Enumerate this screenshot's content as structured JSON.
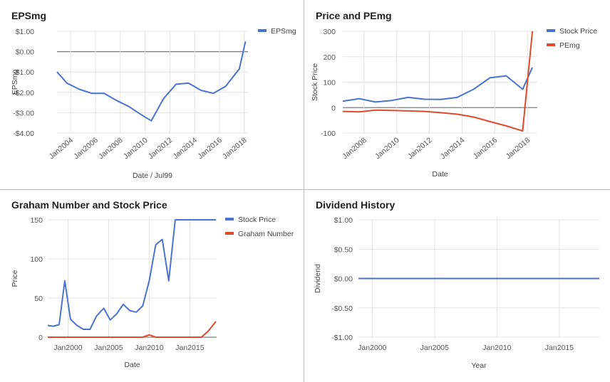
{
  "colors": {
    "blue": "#4a73cf",
    "red": "#e0492b",
    "grid": "#e3e3e3",
    "zero": "#7a7a7a",
    "text": "#555555"
  },
  "chart_data": [
    {
      "type": "line",
      "title": "EPSmg",
      "xlabel": "Date / Jul99",
      "ylabel": "EPSmg",
      "ylim": [
        -4,
        1
      ],
      "yticks": [
        1,
        0,
        -1,
        -2,
        -3,
        -4
      ],
      "ytick_labels": [
        "$1.00",
        "$0.00",
        "-$1.00",
        "-$2.00",
        "-$3.00",
        "-$4.00"
      ],
      "xticks": [
        2004,
        2006,
        2008,
        2010,
        2012,
        2014,
        2016,
        2018
      ],
      "xtick_labels": [
        "Jan2004",
        "Jan2006",
        "Jan2008",
        "Jan2010",
        "Jan2012",
        "Jan2014",
        "Jan2016",
        "Jan2018"
      ],
      "xlim": [
        2002.9,
        2018.3
      ],
      "legend": "right",
      "series": [
        {
          "name": "EPSmg",
          "color": "#4a73cf",
          "x": [
            2002.9,
            2003.2,
            2003.7,
            2004.7,
            2005.7,
            2006.7,
            2007.7,
            2008.7,
            2009.7,
            2010.5,
            2011.5,
            2012.5,
            2013.5,
            2014.5,
            2015.5,
            2016.5,
            2017.6,
            2018.1
          ],
          "y": [
            -1.0,
            -1.2,
            -1.55,
            -1.85,
            -2.05,
            -2.05,
            -2.4,
            -2.7,
            -3.1,
            -3.4,
            -2.3,
            -1.6,
            -1.55,
            -1.9,
            -2.05,
            -1.7,
            -0.85,
            0.5
          ]
        }
      ]
    },
    {
      "type": "line",
      "title": "Price and PEmg",
      "xlabel": "Date",
      "ylabel": "Stock Price",
      "ylim": [
        -100,
        300
      ],
      "yticks": [
        300,
        200,
        100,
        0,
        -100
      ],
      "ytick_labels": [
        "300",
        "200",
        "100",
        "0",
        "-100"
      ],
      "xticks": [
        2008,
        2010,
        2012,
        2014,
        2016,
        2018
      ],
      "xtick_labels": [
        "Jan2008",
        "Jan2010",
        "Jan2012",
        "Jan2014",
        "Jan2016",
        "Jan2018"
      ],
      "xlim": [
        2006.7,
        2018.6
      ],
      "legend": "right",
      "series": [
        {
          "name": "Stock Price",
          "color": "#4a73cf",
          "x": [
            2006.7,
            2007.7,
            2008.7,
            2009.7,
            2010.7,
            2011.7,
            2012.7,
            2013.7,
            2014.7,
            2015.7,
            2016.7,
            2017.7,
            2018.3
          ],
          "y": [
            25,
            35,
            22,
            28,
            40,
            33,
            32,
            40,
            72,
            117,
            125,
            72,
            158
          ]
        },
        {
          "name": "PEmg",
          "color": "#e0492b",
          "x": [
            2006.7,
            2007.7,
            2008.7,
            2009.7,
            2010.7,
            2011.7,
            2012.7,
            2013.7,
            2014.7,
            2015.7,
            2016.7,
            2017.7,
            2018.3
          ],
          "y": [
            -15,
            -17,
            -10,
            -11,
            -13,
            -15,
            -20,
            -26,
            -37,
            -55,
            -72,
            -92,
            300
          ]
        }
      ]
    },
    {
      "type": "line",
      "title": "Graham Number and Stock Price",
      "xlabel": "Date",
      "ylabel": "Price",
      "ylim": [
        0,
        150
      ],
      "yticks": [
        150,
        100,
        50,
        0
      ],
      "ytick_labels": [
        "150",
        "100",
        "50",
        "0"
      ],
      "xticks": [
        2000,
        2005,
        2010,
        2015
      ],
      "xtick_labels": [
        "Jan2000",
        "Jan2005",
        "Jan2010",
        "Jan2015"
      ],
      "xlim": [
        1997.5,
        2018.3
      ],
      "legend": "right",
      "series": [
        {
          "name": "Stock Price",
          "color": "#4a73cf",
          "x": [
            1997.5,
            1998.2,
            1998.9,
            1999.6,
            2000.3,
            2001.1,
            2001.9,
            2002.7,
            2003.5,
            2004.4,
            2005.2,
            2006.0,
            2006.8,
            2007.6,
            2008.4,
            2009.2,
            2010.0,
            2010.8,
            2011.6,
            2012.4,
            2013.2,
            2014.0,
            2014.8,
            2015.6,
            2016.4,
            2017.2,
            2018.2
          ],
          "y": [
            15,
            14,
            16,
            72,
            23,
            15,
            10,
            10,
            27,
            37,
            22,
            30,
            42,
            34,
            32,
            40,
            72,
            118,
            125,
            72,
            150,
            150,
            150,
            150,
            150,
            150,
            150
          ]
        },
        {
          "name": "Graham Number",
          "color": "#e0492b",
          "x": [
            1997.5,
            2008.4,
            2009.2,
            2010.0,
            2010.8,
            2012.4,
            2013.2,
            2014.0,
            2014.8,
            2015.6,
            2016.4,
            2017.2,
            2018.2
          ],
          "y": [
            0,
            0,
            0,
            3,
            0,
            0,
            0,
            0,
            0,
            0,
            0,
            7,
            20
          ]
        }
      ]
    },
    {
      "type": "line",
      "title": "Dividend History",
      "xlabel": "Year",
      "ylabel": "Dividend",
      "ylim": [
        -1,
        1
      ],
      "yticks": [
        1,
        0.5,
        0,
        -0.5,
        -1
      ],
      "ytick_labels": [
        "$1.00",
        "$0.50",
        "$0.00",
        "-$0.50",
        "-$1.00"
      ],
      "xticks": [
        2000,
        2005,
        2010,
        2015
      ],
      "xtick_labels": [
        "Jan2000",
        "Jan2005",
        "Jan2010",
        "Jan2015"
      ],
      "xlim": [
        1998.9,
        2018.2
      ],
      "legend": "none",
      "series": [
        {
          "color": "#4a73cf",
          "x": [
            1998.9,
            2018.2
          ],
          "y": [
            0,
            0
          ]
        }
      ]
    }
  ]
}
